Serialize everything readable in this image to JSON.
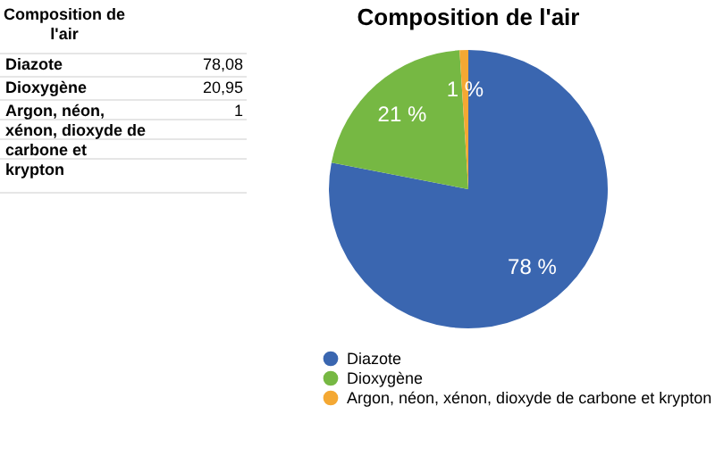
{
  "chart_data": {
    "type": "pie",
    "title": "Composition de l'air",
    "categories": [
      "Diazote",
      "Dioxygène",
      "Argon, néon, xénon, dioxyde de carbone et krypton"
    ],
    "values": [
      78.08,
      20.95,
      1
    ],
    "value_labels": [
      "78 %",
      "21 %",
      "1 %"
    ],
    "colors": [
      "#3a66b0",
      "#76b843",
      "#f4a833"
    ],
    "legend": "bottom",
    "annotations": [
      "Composition de l'air",
      "78,08",
      "20,95",
      "1"
    ]
  }
}
